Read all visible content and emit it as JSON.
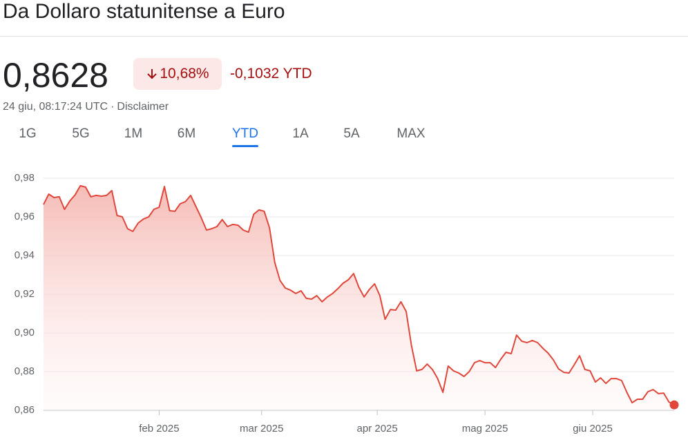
{
  "header": {
    "title": "Da Dollaro statunitense a Euro"
  },
  "quote": {
    "price": "0,8628",
    "change_pct": "10,68%",
    "change_abs": "-0,1032 YTD",
    "timestamp": "24 giu, 08:17:24 UTC",
    "separator": "·",
    "disclaimer": "Disclaimer"
  },
  "tabs": {
    "items": [
      "1G",
      "5G",
      "1M",
      "6M",
      "YTD",
      "1A",
      "5A",
      "MAX"
    ],
    "selected": "YTD"
  },
  "chart_data": {
    "type": "line",
    "color": "#e0463a",
    "grid": true,
    "values": [
      0.9664,
      0.9718,
      0.97,
      0.9704,
      0.9639,
      0.9682,
      0.9714,
      0.9761,
      0.9754,
      0.9704,
      0.9711,
      0.9707,
      0.9711,
      0.9736,
      0.9607,
      0.96,
      0.9539,
      0.9525,
      0.9568,
      0.9589,
      0.96,
      0.9639,
      0.965,
      0.9757,
      0.9632,
      0.9629,
      0.9668,
      0.9679,
      0.9711,
      0.9654,
      0.9596,
      0.9532,
      0.9539,
      0.955,
      0.9586,
      0.955,
      0.9561,
      0.9557,
      0.9532,
      0.9521,
      0.9614,
      0.9636,
      0.9629,
      0.9543,
      0.9364,
      0.9271,
      0.9232,
      0.9221,
      0.9204,
      0.9218,
      0.9179,
      0.9175,
      0.9193,
      0.9161,
      0.9186,
      0.9204,
      0.9229,
      0.9257,
      0.9275,
      0.9307,
      0.9236,
      0.9186,
      0.9225,
      0.9254,
      0.9193,
      0.9071,
      0.9121,
      0.9118,
      0.9161,
      0.9111,
      0.8936,
      0.8804,
      0.8811,
      0.8839,
      0.8811,
      0.8764,
      0.8693,
      0.8829,
      0.8804,
      0.8793,
      0.8775,
      0.88,
      0.8846,
      0.8857,
      0.8846,
      0.8846,
      0.8821,
      0.8864,
      0.89,
      0.8893,
      0.8989,
      0.8957,
      0.895,
      0.8961,
      0.895,
      0.8921,
      0.8896,
      0.8861,
      0.8814,
      0.8796,
      0.8793,
      0.8836,
      0.8882,
      0.8811,
      0.8804,
      0.8746,
      0.8768,
      0.8739,
      0.8764,
      0.8764,
      0.8754,
      0.8693,
      0.8639,
      0.8657,
      0.8657,
      0.8696,
      0.8707,
      0.8686,
      0.8689,
      0.8643,
      0.8628
    ],
    "ylim": [
      0.86,
      0.98
    ],
    "yticks": [
      {
        "value": 0.86,
        "label": "0,86"
      },
      {
        "value": 0.88,
        "label": "0,88"
      },
      {
        "value": 0.9,
        "label": "0,90"
      },
      {
        "value": 0.92,
        "label": "0,92"
      },
      {
        "value": 0.94,
        "label": "0,94"
      },
      {
        "value": 0.96,
        "label": "0,96"
      },
      {
        "value": 0.98,
        "label": "0,98"
      }
    ],
    "xlim": [
      0,
      120
    ],
    "xticks": [
      {
        "value": 22,
        "label": "feb 2025"
      },
      {
        "value": 41.5,
        "label": "mar 2025"
      },
      {
        "value": 63.5,
        "label": "apr 2025"
      },
      {
        "value": 84,
        "label": "mag 2025"
      },
      {
        "value": 104.5,
        "label": "giu 2025"
      }
    ]
  }
}
